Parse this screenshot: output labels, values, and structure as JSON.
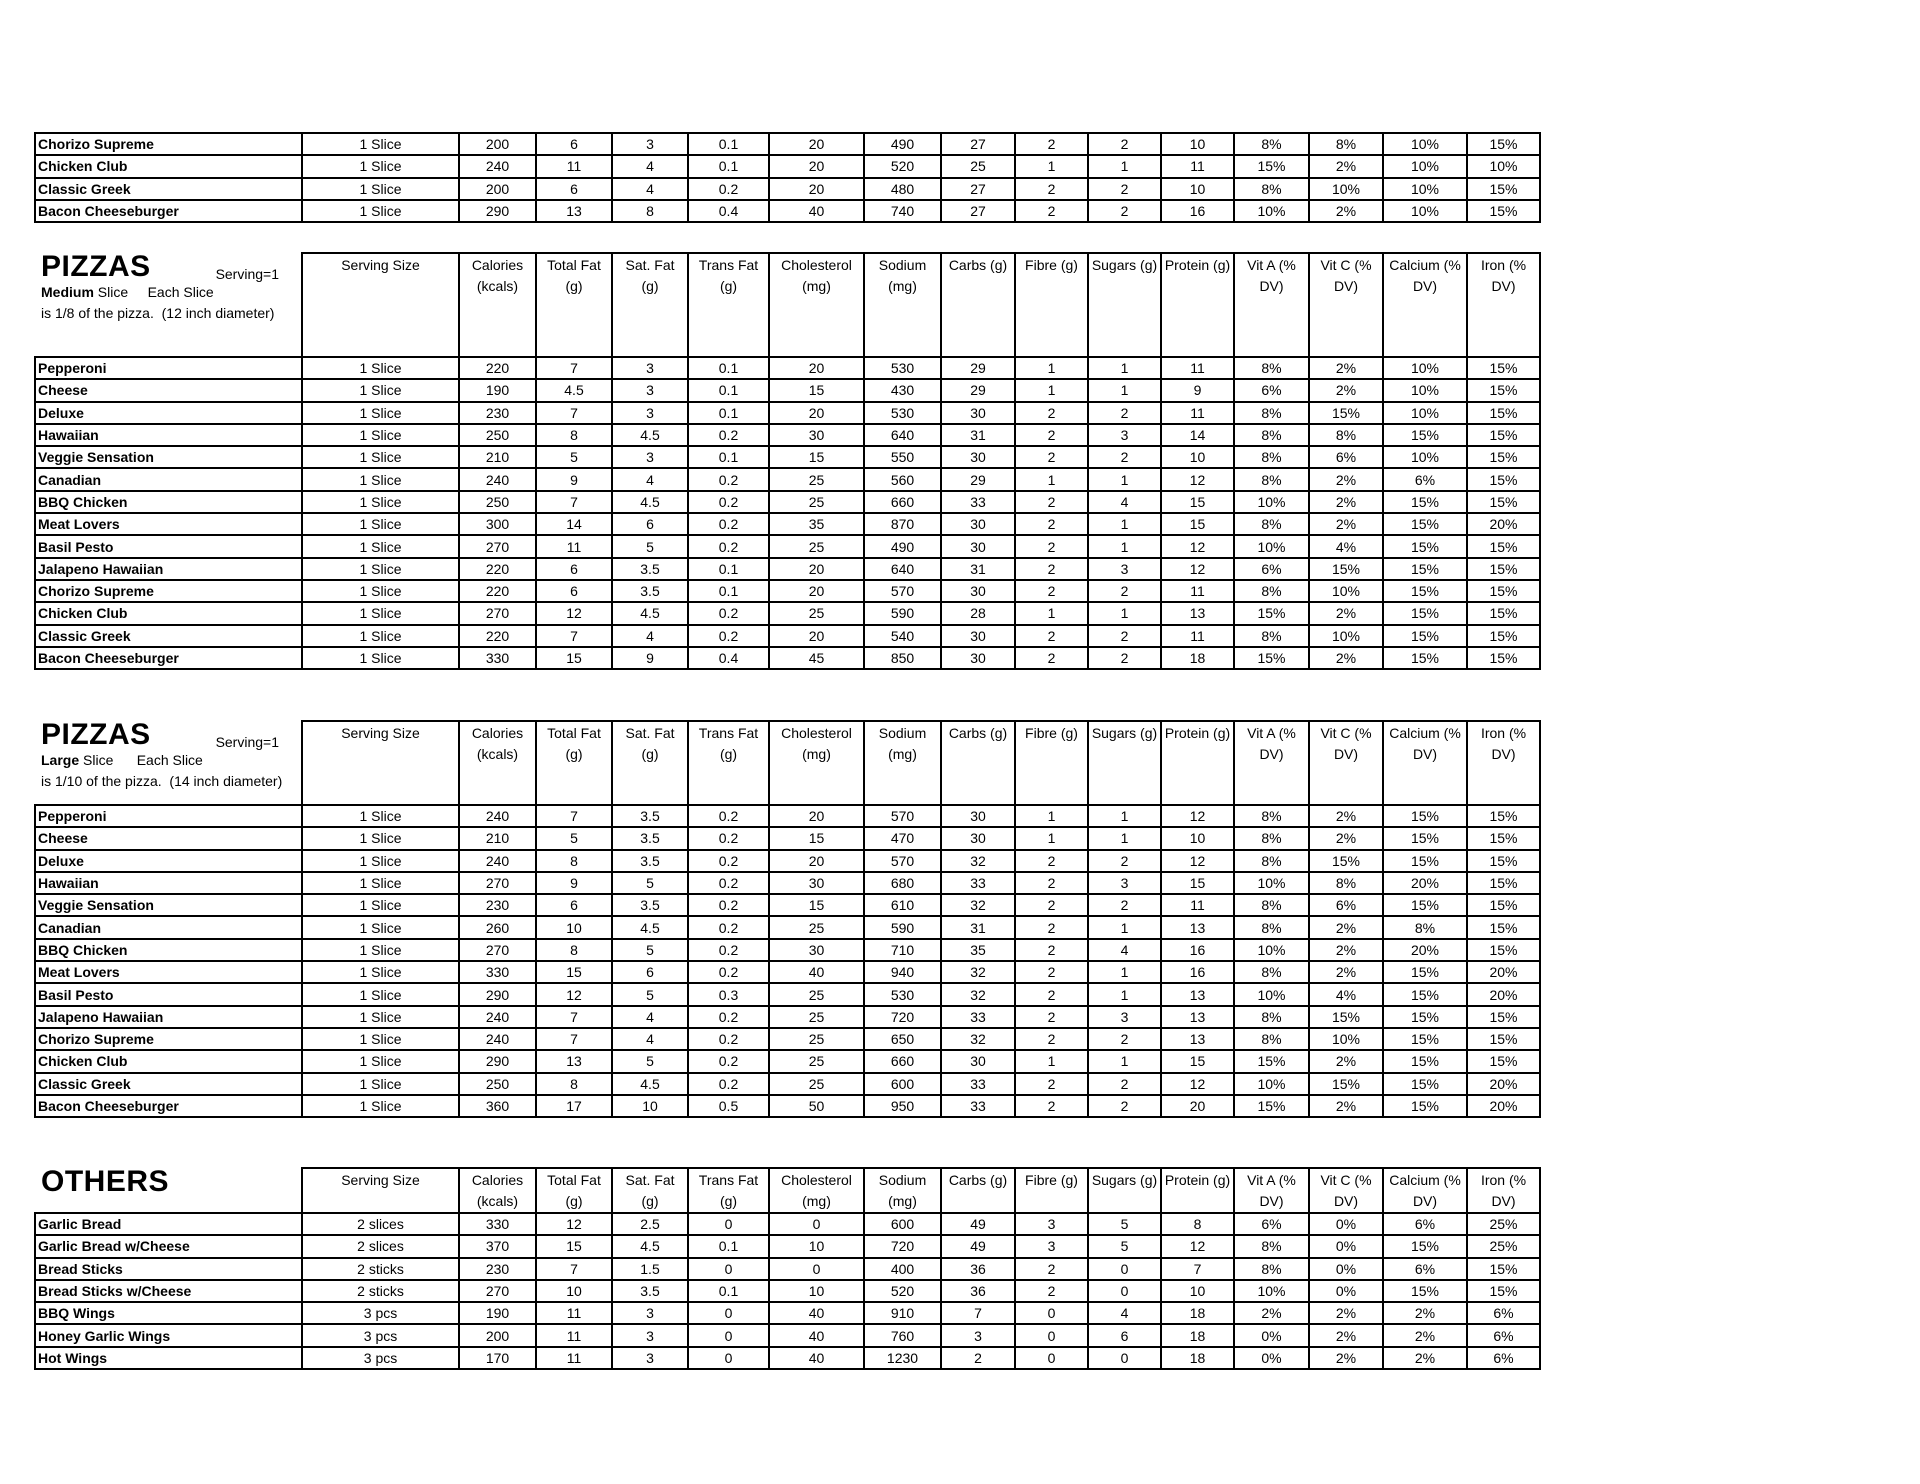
{
  "columns": [
    "Serving Size",
    "Calories (kcals)",
    "Total Fat (g)",
    "Sat. Fat (g)",
    "Trans Fat (g)",
    "Cholesterol (mg)",
    "Sodium (mg)",
    "Carbs (g)",
    "Fibre (g)",
    "Sugars (g)",
    "Protein (g)",
    "Vit A (% DV)",
    "Vit C (% DV)",
    "Calcium (% DV)",
    "Iron (% DV)"
  ],
  "sections": [
    {
      "id": "continued",
      "header": null,
      "rows": [
        [
          "Chorizo Supreme",
          "1 Slice",
          "200",
          "6",
          "3",
          "0.1",
          "20",
          "490",
          "27",
          "2",
          "2",
          "10",
          "8%",
          "8%",
          "10%",
          "15%"
        ],
        [
          "Chicken Club",
          "1 Slice",
          "240",
          "11",
          "4",
          "0.1",
          "20",
          "520",
          "25",
          "1",
          "1",
          "11",
          "15%",
          "2%",
          "10%",
          "10%"
        ],
        [
          "Classic Greek",
          "1 Slice",
          "200",
          "6",
          "4",
          "0.2",
          "20",
          "480",
          "27",
          "2",
          "2",
          "10",
          "8%",
          "10%",
          "10%",
          "15%"
        ],
        [
          "Bacon Cheeseburger",
          "1 Slice",
          "290",
          "13",
          "8",
          "0.4",
          "40",
          "740",
          "27",
          "2",
          "2",
          "16",
          "10%",
          "2%",
          "10%",
          "15%"
        ]
      ]
    },
    {
      "id": "pizzas-medium",
      "header": {
        "title": "PIZZAS",
        "serving": "Serving=1",
        "size": "Medium",
        "desc": "Slice     Each Slice is 1/8 of the pizza.  (12 inch diameter)"
      },
      "rows": [
        [
          "Pepperoni",
          "1 Slice",
          "220",
          "7",
          "3",
          "0.1",
          "20",
          "530",
          "29",
          "1",
          "1",
          "11",
          "8%",
          "2%",
          "10%",
          "15%"
        ],
        [
          "Cheese",
          "1 Slice",
          "190",
          "4.5",
          "3",
          "0.1",
          "15",
          "430",
          "29",
          "1",
          "1",
          "9",
          "6%",
          "2%",
          "10%",
          "15%"
        ],
        [
          "Deluxe",
          "1 Slice",
          "230",
          "7",
          "3",
          "0.1",
          "20",
          "530",
          "30",
          "2",
          "2",
          "11",
          "8%",
          "15%",
          "10%",
          "15%"
        ],
        [
          "Hawaiian",
          "1 Slice",
          "250",
          "8",
          "4.5",
          "0.2",
          "30",
          "640",
          "31",
          "2",
          "3",
          "14",
          "8%",
          "8%",
          "15%",
          "15%"
        ],
        [
          "Veggie Sensation",
          "1 Slice",
          "210",
          "5",
          "3",
          "0.1",
          "15",
          "550",
          "30",
          "2",
          "2",
          "10",
          "8%",
          "6%",
          "10%",
          "15%"
        ],
        [
          "Canadian",
          "1 Slice",
          "240",
          "9",
          "4",
          "0.2",
          "25",
          "560",
          "29",
          "1",
          "1",
          "12",
          "8%",
          "2%",
          "6%",
          "15%"
        ],
        [
          "BBQ Chicken",
          "1 Slice",
          "250",
          "7",
          "4.5",
          "0.2",
          "25",
          "660",
          "33",
          "2",
          "4",
          "15",
          "10%",
          "2%",
          "15%",
          "15%"
        ],
        [
          "Meat Lovers",
          "1 Slice",
          "300",
          "14",
          "6",
          "0.2",
          "35",
          "870",
          "30",
          "2",
          "1",
          "15",
          "8%",
          "2%",
          "15%",
          "20%"
        ],
        [
          "Basil Pesto",
          "1 Slice",
          "270",
          "11",
          "5",
          "0.2",
          "25",
          "490",
          "30",
          "2",
          "1",
          "12",
          "10%",
          "4%",
          "15%",
          "15%"
        ],
        [
          "Jalapeno Hawaiian",
          "1 Slice",
          "220",
          "6",
          "3.5",
          "0.1",
          "20",
          "640",
          "31",
          "2",
          "3",
          "12",
          "6%",
          "15%",
          "15%",
          "15%"
        ],
        [
          "Chorizo Supreme",
          "1 Slice",
          "220",
          "6",
          "3.5",
          "0.1",
          "20",
          "570",
          "30",
          "2",
          "2",
          "11",
          "8%",
          "10%",
          "15%",
          "15%"
        ],
        [
          "Chicken Club",
          "1 Slice",
          "270",
          "12",
          "4.5",
          "0.2",
          "25",
          "590",
          "28",
          "1",
          "1",
          "13",
          "15%",
          "2%",
          "15%",
          "15%"
        ],
        [
          "Classic Greek",
          "1 Slice",
          "220",
          "7",
          "4",
          "0.2",
          "20",
          "540",
          "30",
          "2",
          "2",
          "11",
          "8%",
          "10%",
          "15%",
          "15%"
        ],
        [
          "Bacon Cheeseburger",
          "1 Slice",
          "330",
          "15",
          "9",
          "0.4",
          "45",
          "850",
          "30",
          "2",
          "2",
          "18",
          "15%",
          "2%",
          "15%",
          "15%"
        ]
      ]
    },
    {
      "id": "pizzas-large",
      "header": {
        "title": "PIZZAS",
        "serving": "Serving=1",
        "size": "Large",
        "desc": "Slice      Each Slice is 1/10 of the pizza.  (14 inch diameter)"
      },
      "rows": [
        [
          "Pepperoni",
          "1 Slice",
          "240",
          "7",
          "3.5",
          "0.2",
          "20",
          "570",
          "30",
          "1",
          "1",
          "12",
          "8%",
          "2%",
          "15%",
          "15%"
        ],
        [
          "Cheese",
          "1 Slice",
          "210",
          "5",
          "3.5",
          "0.2",
          "15",
          "470",
          "30",
          "1",
          "1",
          "10",
          "8%",
          "2%",
          "15%",
          "15%"
        ],
        [
          "Deluxe",
          "1 Slice",
          "240",
          "8",
          "3.5",
          "0.2",
          "20",
          "570",
          "32",
          "2",
          "2",
          "12",
          "8%",
          "15%",
          "15%",
          "15%"
        ],
        [
          "Hawaiian",
          "1 Slice",
          "270",
          "9",
          "5",
          "0.2",
          "30",
          "680",
          "33",
          "2",
          "3",
          "15",
          "10%",
          "8%",
          "20%",
          "15%"
        ],
        [
          "Veggie Sensation",
          "1 Slice",
          "230",
          "6",
          "3.5",
          "0.2",
          "15",
          "610",
          "32",
          "2",
          "2",
          "11",
          "8%",
          "6%",
          "15%",
          "15%"
        ],
        [
          "Canadian",
          "1 Slice",
          "260",
          "10",
          "4.5",
          "0.2",
          "25",
          "590",
          "31",
          "2",
          "1",
          "13",
          "8%",
          "2%",
          "8%",
          "15%"
        ],
        [
          "BBQ Chicken",
          "1 Slice",
          "270",
          "8",
          "5",
          "0.2",
          "30",
          "710",
          "35",
          "2",
          "4",
          "16",
          "10%",
          "2%",
          "20%",
          "15%"
        ],
        [
          "Meat Lovers",
          "1 Slice",
          "330",
          "15",
          "6",
          "0.2",
          "40",
          "940",
          "32",
          "2",
          "1",
          "16",
          "8%",
          "2%",
          "15%",
          "20%"
        ],
        [
          "Basil Pesto",
          "1 Slice",
          "290",
          "12",
          "5",
          "0.3",
          "25",
          "530",
          "32",
          "2",
          "1",
          "13",
          "10%",
          "4%",
          "15%",
          "20%"
        ],
        [
          "Jalapeno Hawaiian",
          "1 Slice",
          "240",
          "7",
          "4",
          "0.2",
          "25",
          "720",
          "33",
          "2",
          "3",
          "13",
          "8%",
          "15%",
          "15%",
          "15%"
        ],
        [
          "Chorizo Supreme",
          "1 Slice",
          "240",
          "7",
          "4",
          "0.2",
          "25",
          "650",
          "32",
          "2",
          "2",
          "13",
          "8%",
          "10%",
          "15%",
          "15%"
        ],
        [
          "Chicken Club",
          "1 Slice",
          "290",
          "13",
          "5",
          "0.2",
          "25",
          "660",
          "30",
          "1",
          "1",
          "15",
          "15%",
          "2%",
          "15%",
          "15%"
        ],
        [
          "Classic Greek",
          "1 Slice",
          "250",
          "8",
          "4.5",
          "0.2",
          "25",
          "600",
          "33",
          "2",
          "2",
          "12",
          "10%",
          "15%",
          "15%",
          "20%"
        ],
        [
          "Bacon Cheeseburger",
          "1 Slice",
          "360",
          "17",
          "10",
          "0.5",
          "50",
          "950",
          "33",
          "2",
          "2",
          "20",
          "15%",
          "2%",
          "15%",
          "20%"
        ]
      ]
    },
    {
      "id": "others",
      "header": {
        "title": "OTHERS"
      },
      "rows": [
        [
          "Garlic Bread",
          "2 slices",
          "330",
          "12",
          "2.5",
          "0",
          "0",
          "600",
          "49",
          "3",
          "5",
          "8",
          "6%",
          "0%",
          "6%",
          "25%"
        ],
        [
          "Garlic Bread w/Cheese",
          "2 slices",
          "370",
          "15",
          "4.5",
          "0.1",
          "10",
          "720",
          "49",
          "3",
          "5",
          "12",
          "8%",
          "0%",
          "15%",
          "25%"
        ],
        [
          "Bread Sticks",
          "2 sticks",
          "230",
          "7",
          "1.5",
          "0",
          "0",
          "400",
          "36",
          "2",
          "0",
          "7",
          "8%",
          "0%",
          "6%",
          "15%"
        ],
        [
          "Bread Sticks w/Cheese",
          "2 sticks",
          "270",
          "10",
          "3.5",
          "0.1",
          "10",
          "520",
          "36",
          "2",
          "0",
          "10",
          "10%",
          "0%",
          "15%",
          "15%"
        ],
        [
          "BBQ Wings",
          "3 pcs",
          "190",
          "11",
          "3",
          "0",
          "40",
          "910",
          "7",
          "0",
          "4",
          "18",
          "2%",
          "2%",
          "2%",
          "6%"
        ],
        [
          "Honey Garlic Wings",
          "3 pcs",
          "200",
          "11",
          "3",
          "0",
          "40",
          "760",
          "3",
          "0",
          "6",
          "18",
          "0%",
          "2%",
          "2%",
          "6%"
        ],
        [
          "Hot Wings",
          "3 pcs",
          "170",
          "11",
          "3",
          "0",
          "40",
          "1230",
          "2",
          "0",
          "0",
          "18",
          "0%",
          "2%",
          "2%",
          "6%"
        ]
      ]
    }
  ]
}
